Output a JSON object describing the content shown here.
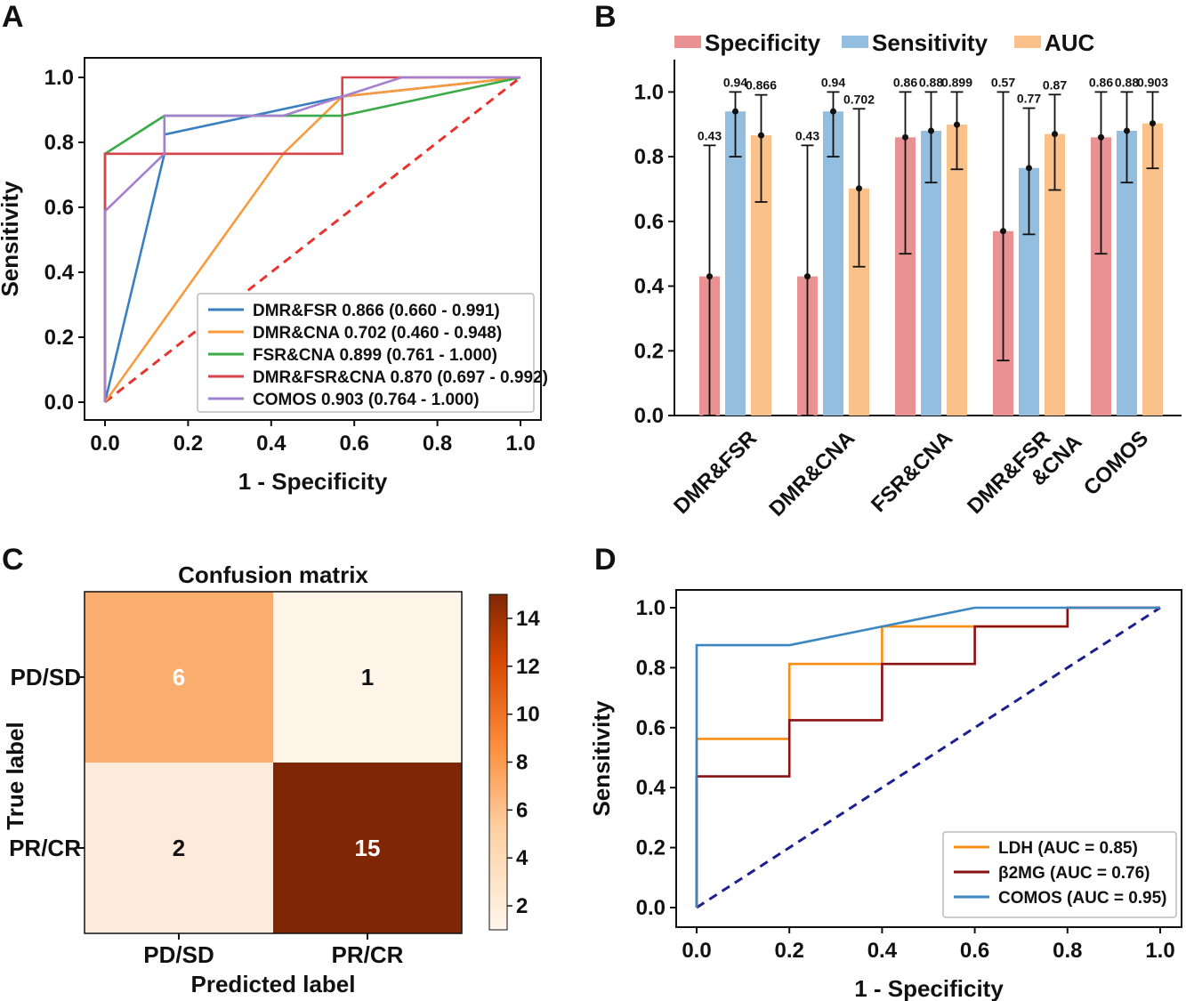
{
  "panels": {
    "A": {
      "letter": "A",
      "chart_data": {
        "type": "line",
        "xlabel": "1 - Specificity",
        "ylabel": "Sensitivity",
        "xlim": [
          0,
          1
        ],
        "ylim": [
          0,
          1
        ],
        "xticks": [
          "0.0",
          "0.2",
          "0.4",
          "0.6",
          "0.8",
          "1.0"
        ],
        "yticks": [
          "0.0",
          "0.2",
          "0.4",
          "0.6",
          "0.8",
          "1.0"
        ],
        "legend_position": "lower-right",
        "diagonal_color": "#e8332e",
        "series": [
          {
            "name": "DMR&FSR 0.866 (0.660 - 0.991)",
            "color": "#3a7fc1",
            "points": [
              [
                0,
                0
              ],
              [
                0.143,
                0.765
              ],
              [
                0.143,
                0.824
              ],
              [
                0.571,
                0.941
              ],
              [
                1,
                1
              ]
            ]
          },
          {
            "name": "DMR&CNA 0.702 (0.460 - 0.948)",
            "color": "#f99a3d",
            "points": [
              [
                0,
                0
              ],
              [
                0.429,
                0.765
              ],
              [
                0.571,
                0.941
              ],
              [
                1,
                1
              ]
            ]
          },
          {
            "name": "FSR&CNA 0.899 (0.761 - 1.000)",
            "color": "#3aab48",
            "points": [
              [
                0,
                0
              ],
              [
                0,
                0.765
              ],
              [
                0.143,
                0.882
              ],
              [
                0.571,
                0.882
              ],
              [
                1,
                1
              ]
            ]
          },
          {
            "name": "DMR&FSR&CNA 0.870 (0.697 - 0.992)",
            "color": "#d9434b",
            "points": [
              [
                0,
                0
              ],
              [
                0,
                0.765
              ],
              [
                0.571,
                0.765
              ],
              [
                0.571,
                0.824
              ],
              [
                0.571,
                1
              ],
              [
                1,
                1
              ]
            ]
          },
          {
            "name": "COMOS 0.903 (0.764 - 1.000)",
            "color": "#a57fd0",
            "points": [
              [
                0,
                0
              ],
              [
                0,
                0.588
              ],
              [
                0.143,
                0.765
              ],
              [
                0.143,
                0.882
              ],
              [
                0.429,
                0.882
              ],
              [
                0.714,
                1
              ],
              [
                1,
                1
              ]
            ]
          }
        ]
      }
    },
    "B": {
      "letter": "B",
      "chart_data": {
        "type": "bar",
        "categories": [
          "DMR&FSR",
          "DMR&CNA",
          "FSR&CNA",
          "DMR&FSR\n&CNA",
          "COMOS"
        ],
        "ylim": [
          0,
          1.1
        ],
        "yticks": [
          "0.0",
          "0.2",
          "0.4",
          "0.6",
          "0.8",
          "1.0"
        ],
        "legend_position": "top",
        "series": [
          {
            "name": "Specificity",
            "color": "#e89293",
            "values": [
              0.43,
              0.43,
              0.86,
              0.57,
              0.86
            ],
            "labels": [
              "0.43",
              "0.43",
              "0.86",
              "0.57",
              "0.86"
            ],
            "err_low": [
              0.0,
              0.0,
              0.5,
              0.17,
              0.5
            ],
            "err_high": [
              0.835,
              0.835,
              1.0,
              1.0,
              1.0
            ]
          },
          {
            "name": "Sensitivity",
            "color": "#93bedf",
            "values": [
              0.94,
              0.94,
              0.88,
              0.765,
              0.88
            ],
            "labels": [
              "0.94",
              "0.94",
              "0.88",
              "0.77",
              "0.88"
            ],
            "err_low": [
              0.8,
              0.8,
              0.72,
              0.56,
              0.72
            ],
            "err_high": [
              1.0,
              1.0,
              1.0,
              0.95,
              1.0
            ]
          },
          {
            "name": "AUC",
            "color": "#fbc18b",
            "values": [
              0.866,
              0.702,
              0.899,
              0.87,
              0.903
            ],
            "labels": [
              "0.866",
              "0.702",
              "0.899",
              "0.87",
              "0.903"
            ],
            "err_low": [
              0.66,
              0.46,
              0.761,
              0.697,
              0.764
            ],
            "err_high": [
              0.991,
              0.948,
              1.0,
              0.992,
              1.0
            ]
          }
        ]
      }
    },
    "C": {
      "letter": "C",
      "chart_data": {
        "type": "heatmap",
        "title": "Confusion matrix",
        "xlabel": "Predicted label",
        "ylabel": "True label",
        "row_labels": [
          "PD/SD",
          "PR/CR"
        ],
        "col_labels": [
          "PD/SD",
          "PR/CR"
        ],
        "values": [
          [
            6,
            1
          ],
          [
            2,
            15
          ]
        ],
        "cell_colors": [
          [
            "#f9ad6e",
            "#fff4e8"
          ],
          [
            "#feeadb",
            "#7f2704"
          ]
        ],
        "colorbar_ticks": [
          "2",
          "4",
          "6",
          "8",
          "10",
          "12",
          "14"
        ],
        "colorbar_range": [
          1,
          15
        ]
      }
    },
    "D": {
      "letter": "D",
      "chart_data": {
        "type": "line",
        "xlabel": "1 - Specificity",
        "ylabel": "Sensitivity",
        "xlim": [
          0,
          1
        ],
        "ylim": [
          0,
          1
        ],
        "xticks": [
          "0.0",
          "0.2",
          "0.4",
          "0.6",
          "0.8",
          "1.0"
        ],
        "yticks": [
          "0.0",
          "0.2",
          "0.4",
          "0.6",
          "0.8",
          "1.0"
        ],
        "legend_position": "lower-right",
        "diagonal_color": "#1c1f8f",
        "series": [
          {
            "name": "LDH (AUC = 0.85)",
            "color": "#f98f12",
            "points": [
              [
                0,
                0
              ],
              [
                0,
                0.5625
              ],
              [
                0.2,
                0.5625
              ],
              [
                0.2,
                0.8125
              ],
              [
                0.4,
                0.8125
              ],
              [
                0.4,
                0.9375
              ],
              [
                0.8,
                0.9375
              ],
              [
                0.8,
                1
              ],
              [
                1,
                1
              ]
            ]
          },
          {
            "name": "β2MG (AUC = 0.76)",
            "color": "#8b1010",
            "points": [
              [
                0,
                0
              ],
              [
                0,
                0.4375
              ],
              [
                0.2,
                0.4375
              ],
              [
                0.2,
                0.625
              ],
              [
                0.4,
                0.625
              ],
              [
                0.4,
                0.8125
              ],
              [
                0.6,
                0.8125
              ],
              [
                0.6,
                0.9375
              ],
              [
                0.8,
                0.9375
              ],
              [
                0.8,
                1
              ],
              [
                1,
                1
              ]
            ]
          },
          {
            "name": "COMOS (AUC = 0.95)",
            "color": "#3c87c2",
            "points": [
              [
                0,
                0
              ],
              [
                0,
                0.875
              ],
              [
                0.2,
                0.875
              ],
              [
                0.4,
                0.9375
              ],
              [
                0.6,
                1
              ],
              [
                1,
                1
              ]
            ]
          }
        ]
      }
    }
  }
}
